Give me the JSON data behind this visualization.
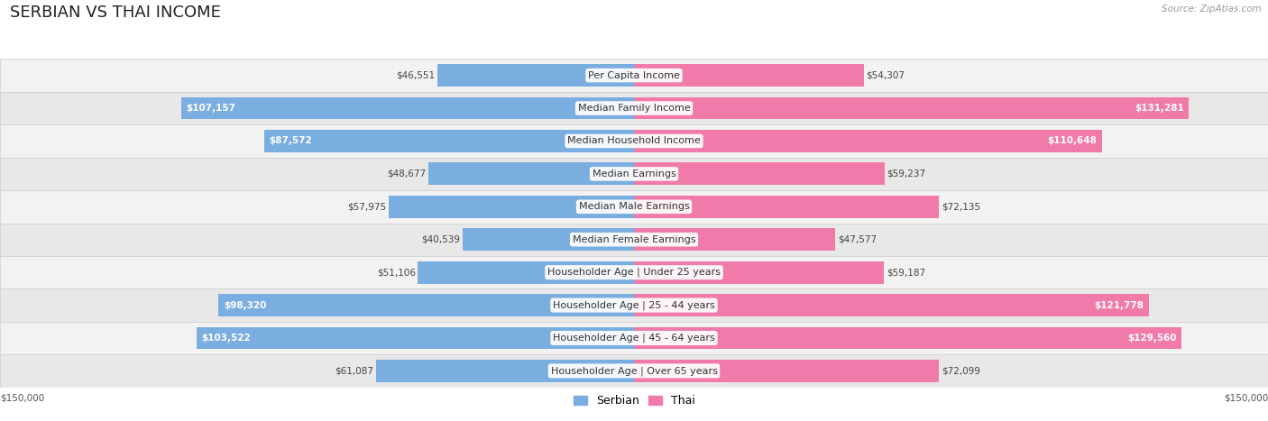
{
  "title": "SERBIAN VS THAI INCOME",
  "source": "Source: ZipAtlas.com",
  "categories": [
    "Per Capita Income",
    "Median Family Income",
    "Median Household Income",
    "Median Earnings",
    "Median Male Earnings",
    "Median Female Earnings",
    "Householder Age | Under 25 years",
    "Householder Age | 25 - 44 years",
    "Householder Age | 45 - 64 years",
    "Householder Age | Over 65 years"
  ],
  "serbian_values": [
    46551,
    107157,
    87572,
    48677,
    57975,
    40539,
    51106,
    98320,
    103522,
    61087
  ],
  "thai_values": [
    54307,
    131281,
    110648,
    59237,
    72135,
    47577,
    59187,
    121778,
    129560,
    72099
  ],
  "serbian_color": "#7aade0",
  "thai_color": "#f07aaa",
  "row_bg_color_even": "#f2f2f2",
  "row_bg_color_odd": "#e8e8e8",
  "max_value": 150000,
  "xlabel_left": "$150,000",
  "xlabel_right": "$150,000",
  "title_fontsize": 13,
  "cat_fontsize": 8.0,
  "value_fontsize": 7.5,
  "legend_fontsize": 9,
  "background_color": "#ffffff",
  "serbian_white_threshold": 80000,
  "thai_white_threshold": 100000
}
